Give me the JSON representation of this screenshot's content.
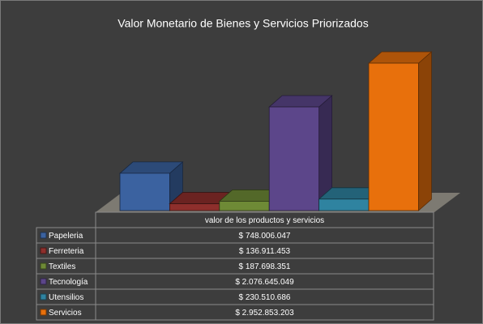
{
  "chart_data": {
    "type": "bar",
    "title": "Valor Monetario de Bienes y Servicios Priorizados",
    "categories": [
      "Papeleria",
      "Ferreteria",
      "Textiles",
      "Tecnología",
      "Utensilios",
      "Servicios"
    ],
    "series": [
      {
        "name": "valor de los productos y servicios",
        "values": [
          748006047,
          136911453,
          187698351,
          2076645049,
          230510686,
          2952853203
        ],
        "value_labels": [
          "$ 748.006.047",
          "$ 136.911.453",
          "$ 187.698.351",
          "$ 2.076.645.049",
          "$ 230.510.686",
          "$ 2.952.853.203"
        ],
        "colors": [
          "#3b62a0",
          "#8e2f2c",
          "#6e8a36",
          "#5c468a",
          "#2f83a0",
          "#e8700c"
        ]
      }
    ]
  }
}
